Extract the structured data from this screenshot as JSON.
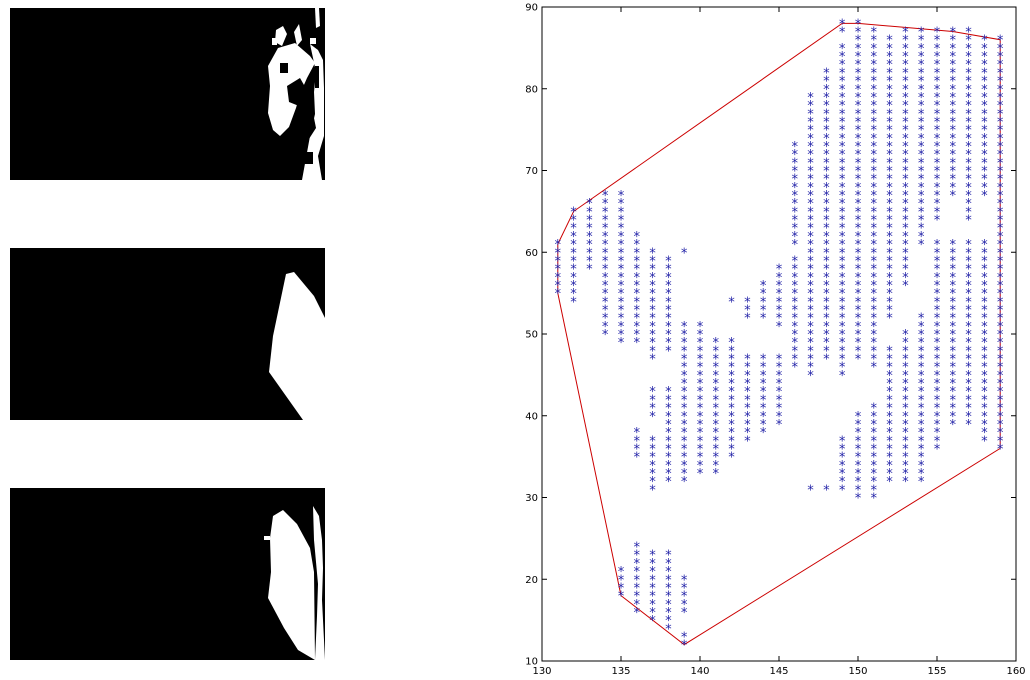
{
  "colors": {
    "background": "#ffffff",
    "mask": "#000000",
    "foreground": "#ffffff",
    "markers": "#1f1fa6",
    "hull": "#cc0000"
  },
  "panels": [
    {
      "name": "raw-binary-mask"
    },
    {
      "name": "convex-hull-mask"
    },
    {
      "name": "combined-mask"
    }
  ],
  "chart_data": {
    "type": "scatter",
    "title": "",
    "xlabel": "",
    "ylabel": "",
    "xlim": [
      130,
      160
    ],
    "ylim": [
      10,
      90
    ],
    "xticks": [
      130,
      135,
      140,
      145,
      150,
      155,
      160
    ],
    "yticks": [
      10,
      20,
      30,
      40,
      50,
      60,
      70,
      80,
      90
    ],
    "grid": false,
    "legend": "none",
    "marker": "*",
    "columns": [
      {
        "x": 131,
        "y_ranges": [
          [
            55,
            61
          ]
        ]
      },
      {
        "x": 132,
        "y_ranges": [
          [
            54,
            61
          ],
          [
            62,
            65
          ]
        ]
      },
      {
        "x": 133,
        "y_ranges": [
          [
            58,
            66
          ]
        ]
      },
      {
        "x": 134,
        "y_ranges": [
          [
            50,
            67
          ]
        ]
      },
      {
        "x": 135,
        "y_ranges": [
          [
            18,
            21
          ],
          [
            49,
            67
          ]
        ]
      },
      {
        "x": 136,
        "y_ranges": [
          [
            16,
            24
          ],
          [
            35,
            38
          ],
          [
            49,
            62
          ]
        ]
      },
      {
        "x": 137,
        "y_ranges": [
          [
            15,
            23
          ],
          [
            31,
            37
          ],
          [
            40,
            43
          ],
          [
            47,
            60
          ]
        ]
      },
      {
        "x": 138,
        "y_ranges": [
          [
            14,
            23
          ],
          [
            32,
            43
          ],
          [
            48,
            59
          ]
        ]
      },
      {
        "x": 139,
        "y_ranges": [
          [
            12,
            13
          ],
          [
            16,
            20
          ],
          [
            32,
            51
          ],
          [
            60,
            60
          ]
        ]
      },
      {
        "x": 140,
        "y_ranges": [
          [
            33,
            51
          ]
        ]
      },
      {
        "x": 141,
        "y_ranges": [
          [
            33,
            49
          ]
        ]
      },
      {
        "x": 142,
        "y_ranges": [
          [
            35,
            49
          ],
          [
            54,
            54
          ]
        ]
      },
      {
        "x": 143,
        "y_ranges": [
          [
            37,
            47
          ],
          [
            52,
            54
          ]
        ]
      },
      {
        "x": 144,
        "y_ranges": [
          [
            38,
            47
          ],
          [
            52,
            56
          ]
        ]
      },
      {
        "x": 145,
        "y_ranges": [
          [
            39,
            47
          ],
          [
            51,
            58
          ]
        ]
      },
      {
        "x": 146,
        "y_ranges": [
          [
            46,
            59
          ],
          [
            61,
            73
          ]
        ]
      },
      {
        "x": 147,
        "y_ranges": [
          [
            31,
            31
          ],
          [
            45,
            79
          ]
        ]
      },
      {
        "x": 148,
        "y_ranges": [
          [
            31,
            31
          ],
          [
            47,
            82
          ]
        ]
      },
      {
        "x": 149,
        "y_ranges": [
          [
            31,
            37
          ],
          [
            45,
            85
          ],
          [
            87,
            88
          ]
        ]
      },
      {
        "x": 150,
        "y_ranges": [
          [
            30,
            40
          ],
          [
            47,
            88
          ]
        ]
      },
      {
        "x": 151,
        "y_ranges": [
          [
            30,
            41
          ],
          [
            46,
            87
          ]
        ]
      },
      {
        "x": 152,
        "y_ranges": [
          [
            32,
            48
          ],
          [
            52,
            86
          ]
        ]
      },
      {
        "x": 153,
        "y_ranges": [
          [
            32,
            50
          ],
          [
            56,
            87
          ]
        ]
      },
      {
        "x": 154,
        "y_ranges": [
          [
            32,
            52
          ],
          [
            61,
            87
          ]
        ]
      },
      {
        "x": 155,
        "y_ranges": [
          [
            36,
            61
          ],
          [
            64,
            87
          ]
        ]
      },
      {
        "x": 156,
        "y_ranges": [
          [
            39,
            61
          ],
          [
            67,
            87
          ]
        ]
      },
      {
        "x": 157,
        "y_ranges": [
          [
            39,
            61
          ],
          [
            64,
            87
          ]
        ]
      },
      {
        "x": 158,
        "y_ranges": [
          [
            37,
            61
          ],
          [
            67,
            86
          ]
        ]
      },
      {
        "x": 159,
        "y_ranges": [
          [
            36,
            86
          ]
        ]
      }
    ],
    "hull": [
      [
        131,
        55
      ],
      [
        135,
        18
      ],
      [
        139,
        12
      ],
      [
        159,
        36
      ],
      [
        159,
        86
      ],
      [
        156,
        87
      ],
      [
        150,
        88
      ],
      [
        149,
        88
      ],
      [
        132,
        65
      ],
      [
        131,
        61
      ],
      [
        131,
        55
      ]
    ]
  }
}
